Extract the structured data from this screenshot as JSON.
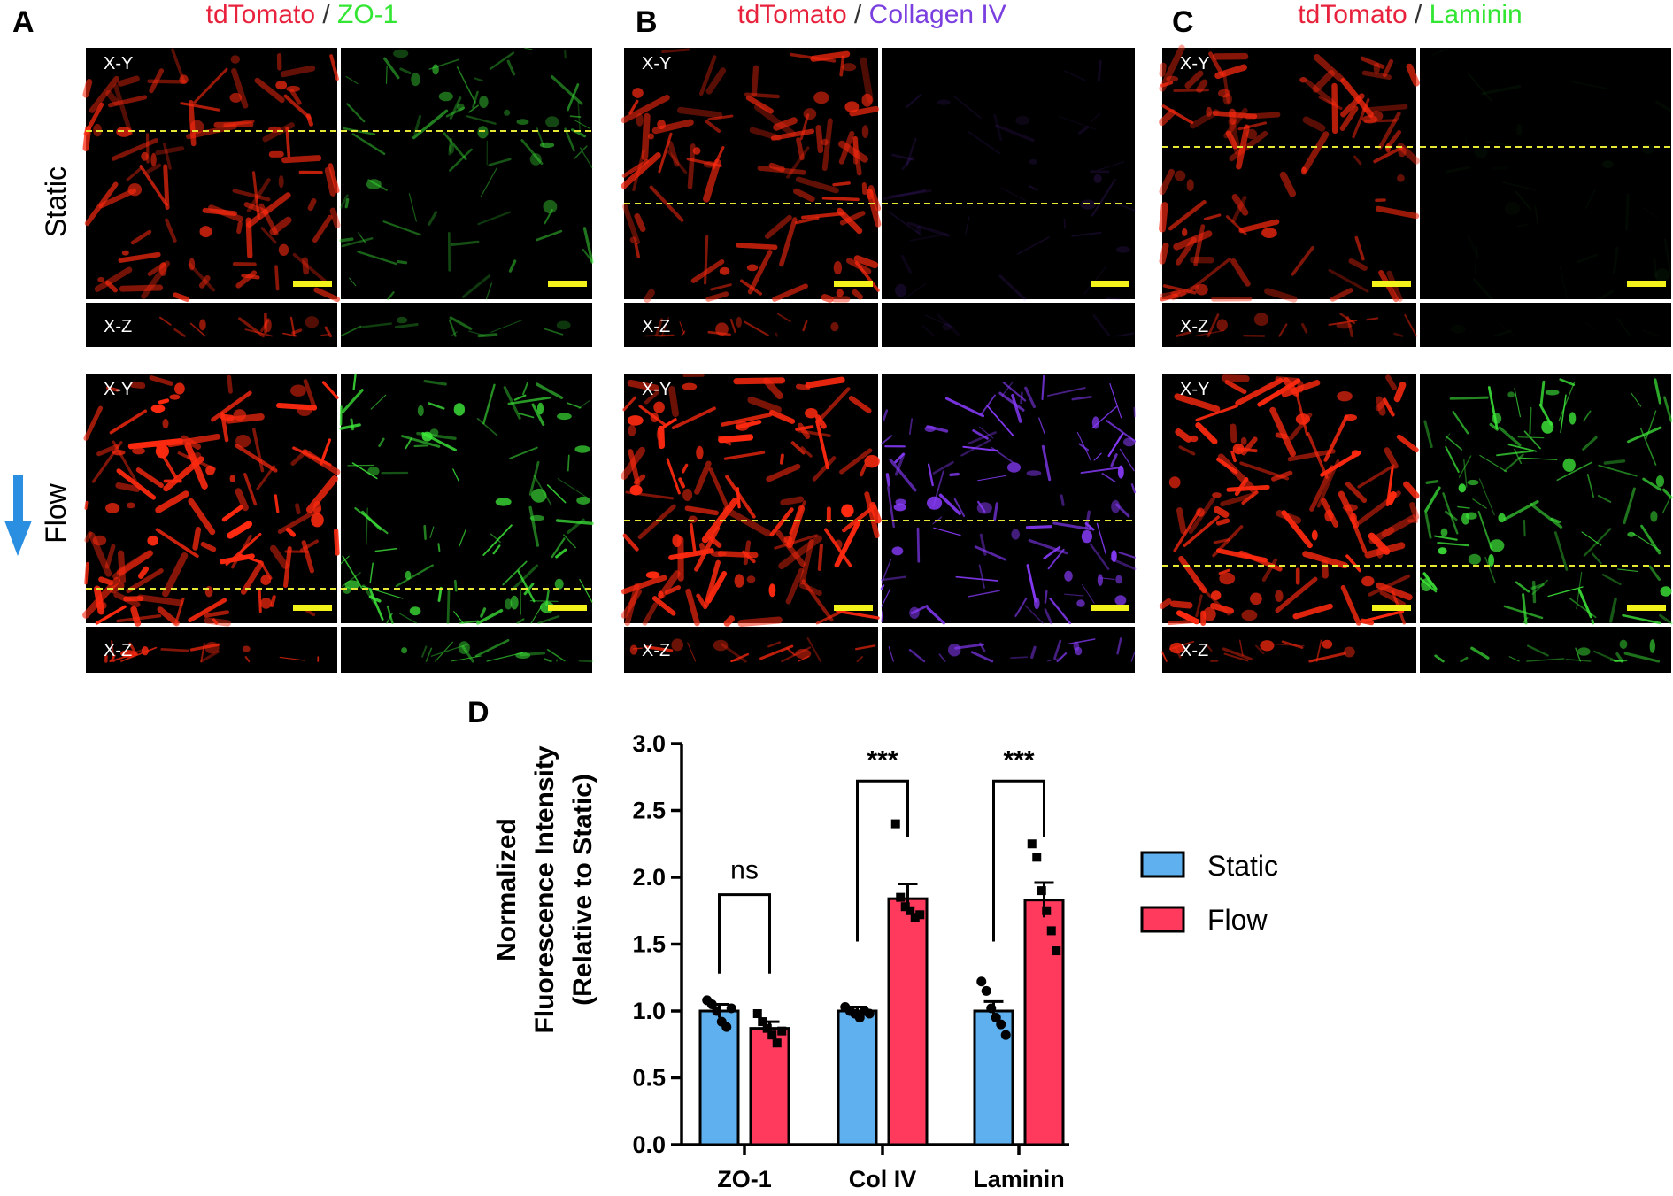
{
  "panels": [
    {
      "letter": "A",
      "stain_prefix": "tdTomato",
      "separator": " / ",
      "stain": "ZO-1",
      "stain_color": "#33e633",
      "prefix_color": "#e8223c"
    },
    {
      "letter": "B",
      "stain_prefix": "tdTomato",
      "separator": " / ",
      "stain": "Collagen IV",
      "stain_color": "#7b3fe0",
      "prefix_color": "#e8223c"
    },
    {
      "letter": "C",
      "stain_prefix": "tdTomato",
      "separator": " / ",
      "stain": "Laminin",
      "stain_color": "#33e633",
      "prefix_color": "#e8223c"
    }
  ],
  "row_labels": {
    "static": "Static",
    "flow": "Flow"
  },
  "view_labels": {
    "xy": "X-Y",
    "xz": "X-Z"
  },
  "colors": {
    "red_channel": "#ff2a10",
    "green_channel": "#3ee83a",
    "violet_channel": "#8a3cff",
    "dash_line": "#e6e635",
    "scale_bar": "#f2f21a",
    "flow_arrow": "#2a8fe0",
    "static_bar": "#5fb0ee",
    "flow_bar": "#ff3a5c"
  },
  "chart_panel_letter": "D",
  "chart_data": {
    "type": "bar",
    "categories": [
      "ZO-1",
      "Col IV",
      "Laminin"
    ],
    "series": [
      {
        "name": "Static",
        "color": "#5fb0ee",
        "values": [
          1.0,
          1.0,
          1.0
        ],
        "errors": [
          0.05,
          0.03,
          0.07
        ],
        "points": [
          [
            1.08,
            1.05,
            1.0,
            0.92,
            0.88,
            1.02
          ],
          [
            1.03,
            1.0,
            0.98,
            0.95,
            1.0,
            0.98
          ],
          [
            1.22,
            1.15,
            1.02,
            0.95,
            0.9,
            0.82
          ]
        ]
      },
      {
        "name": "Flow",
        "color": "#ff3a5c",
        "values": [
          0.87,
          1.84,
          1.83
        ],
        "errors": [
          0.05,
          0.11,
          0.13
        ],
        "points": [
          [
            0.98,
            0.92,
            0.87,
            0.82,
            0.76,
            0.85
          ],
          [
            2.4,
            1.85,
            1.78,
            1.75,
            1.7,
            1.72
          ],
          [
            2.25,
            2.15,
            1.9,
            1.75,
            1.6,
            1.45
          ]
        ]
      }
    ],
    "significance": [
      "ns",
      "***",
      "***"
    ],
    "ylabel_line1": "Normalized",
    "ylabel_line2": "Fluorescence Intensity",
    "ylabel_line3": "(Relative to Static)",
    "ylim": [
      0.0,
      3.0
    ],
    "yticks": [
      "0.0",
      "0.5",
      "1.0",
      "1.5",
      "2.0",
      "2.5",
      "3.0"
    ],
    "legend_position": "right",
    "grid": false
  }
}
